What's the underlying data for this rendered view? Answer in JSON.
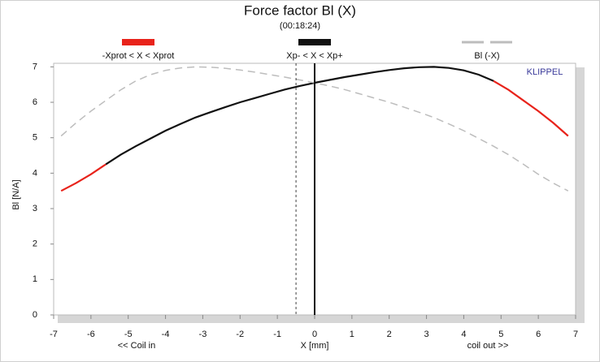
{
  "chart_data": {
    "type": "line",
    "title": "Force factor Bl (X)",
    "subtitle": "(00:18:24)",
    "xlabel": "X [mm]",
    "ylabel": "Bl [N/A]",
    "annotations": [
      "<< Coil in",
      "coil out >>",
      "KLIPPEL"
    ],
    "x": [
      -6.8,
      -6.4,
      -6.0,
      -5.6,
      -5.2,
      -4.8,
      -4.4,
      -4.0,
      -3.6,
      -3.2,
      -2.8,
      -2.4,
      -2.0,
      -1.6,
      -1.2,
      -0.8,
      -0.4,
      0,
      0.4,
      0.8,
      1.2,
      1.6,
      2.0,
      2.4,
      2.8,
      3.2,
      3.6,
      4.0,
      4.4,
      4.8,
      5.2,
      5.6,
      6.0,
      6.4,
      6.8
    ],
    "series": [
      {
        "name": "-Xprot < X < Xprot",
        "color": "#e8231b",
        "dash": false,
        "values": [
          3.5,
          3.72,
          3.97,
          4.25,
          null,
          null,
          null,
          null,
          null,
          null,
          null,
          null,
          null,
          null,
          null,
          null,
          null,
          null,
          null,
          null,
          null,
          null,
          null,
          null,
          null,
          null,
          null,
          null,
          null,
          6.6,
          6.35,
          6.05,
          5.75,
          5.42,
          5.05
        ]
      },
      {
        "name": "Xp- < X < Xp+",
        "color": "#111111",
        "dash": false,
        "values": [
          null,
          null,
          null,
          4.25,
          4.52,
          4.76,
          4.98,
          5.2,
          5.39,
          5.57,
          5.72,
          5.86,
          6.0,
          6.12,
          6.24,
          6.36,
          6.46,
          6.55,
          6.63,
          6.71,
          6.78,
          6.85,
          6.91,
          6.96,
          6.99,
          7.0,
          6.97,
          6.9,
          6.78,
          6.6,
          null,
          null,
          null,
          null,
          null
        ]
      },
      {
        "name": "Bl (-X)",
        "color": "#bdbdbd",
        "dash": true,
        "values": [
          5.05,
          5.42,
          5.75,
          6.05,
          6.35,
          6.6,
          6.78,
          6.9,
          6.97,
          7.0,
          6.99,
          6.96,
          6.91,
          6.85,
          6.78,
          6.71,
          6.63,
          6.55,
          6.46,
          6.36,
          6.24,
          6.12,
          6.0,
          5.86,
          5.72,
          5.57,
          5.39,
          5.2,
          4.98,
          4.76,
          4.52,
          4.25,
          3.97,
          3.72,
          3.5
        ]
      }
    ],
    "vlines": [
      0,
      -0.5
    ],
    "xlim": [
      -7,
      7
    ],
    "ylim": [
      0,
      7.1
    ],
    "xticks": [
      -7,
      -6,
      -5,
      -4,
      -3,
      -2,
      -1,
      0,
      1,
      2,
      3,
      4,
      5,
      6,
      7
    ],
    "yticks": [
      0,
      1,
      2,
      3,
      4,
      5,
      6,
      7
    ]
  }
}
